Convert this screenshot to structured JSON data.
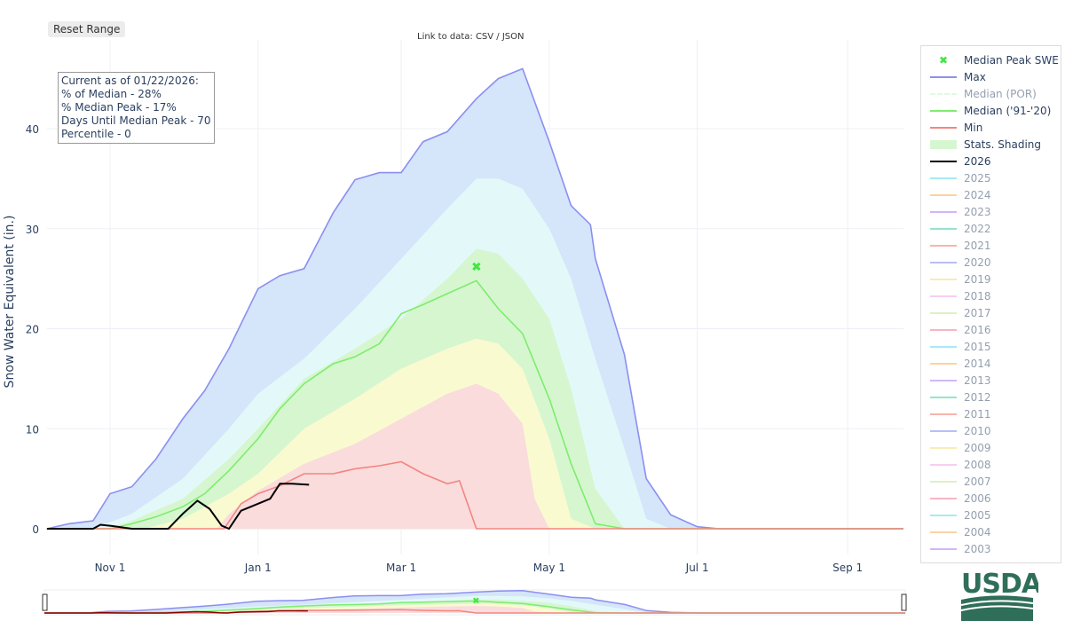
{
  "controls": {
    "reset_label": "Reset Range",
    "data_link": "Link to data: CSV / JSON"
  },
  "info_box": [
    "Current as of 01/22/2026:",
    "% of Median - 28%",
    "% Median Peak - 17%",
    "Days Until Median Peak - 70",
    "Percentile - 0"
  ],
  "logo": {
    "text": "USDA"
  },
  "chart_data": {
    "type": "line",
    "ylabel": "Snow Water Equivalent (in.)",
    "xlabel": "",
    "xrange": [
      "2025-10-06",
      "2026-09-24"
    ],
    "ylim": [
      -2.5,
      48
    ],
    "y_ticks": [
      0,
      10,
      20,
      30,
      40
    ],
    "x_ticks": [
      {
        "date": "2025-11-01",
        "label": "Nov 1"
      },
      {
        "date": "2026-01-01",
        "label": "Jan 1"
      },
      {
        "date": "2026-03-01",
        "label": "Mar 1"
      },
      {
        "date": "2026-05-01",
        "label": "May 1"
      },
      {
        "date": "2026-07-01",
        "label": "Jul 1"
      },
      {
        "date": "2026-09-01",
        "label": "Sep 1"
      }
    ],
    "grid": true,
    "legend_placement": "right",
    "shading": [
      {
        "band": "max",
        "fill": "#d5e5fa",
        "points": [
          [
            "2025-10-06",
            0
          ],
          [
            "2025-10-15",
            0.5
          ],
          [
            "2025-10-25",
            0.8
          ],
          [
            "2025-11-01",
            3.5
          ],
          [
            "2025-11-10",
            4.2
          ],
          [
            "2025-11-20",
            7
          ],
          [
            "2025-12-01",
            11
          ],
          [
            "2025-12-10",
            13.8
          ],
          [
            "2025-12-20",
            18
          ],
          [
            "2026-01-01",
            24
          ],
          [
            "2026-01-10",
            25.3
          ],
          [
            "2026-01-20",
            26
          ],
          [
            "2026-02-01",
            31.6
          ],
          [
            "2026-02-10",
            34.9
          ],
          [
            "2026-02-20",
            35.6
          ],
          [
            "2026-03-01",
            35.6
          ],
          [
            "2026-03-10",
            38.7
          ],
          [
            "2026-03-20",
            39.7
          ],
          [
            "2026-04-01",
            43
          ],
          [
            "2026-04-10",
            45
          ],
          [
            "2026-04-20",
            46
          ],
          [
            "2026-05-01",
            38.7
          ],
          [
            "2026-05-10",
            32.3
          ],
          [
            "2026-05-18",
            30.4
          ],
          [
            "2026-05-20",
            27
          ],
          [
            "2026-06-01",
            17.4
          ],
          [
            "2026-06-10",
            5
          ],
          [
            "2026-06-20",
            1.4
          ],
          [
            "2026-07-01",
            0.2
          ],
          [
            "2026-07-10",
            0
          ],
          [
            "2026-09-24",
            0
          ]
        ]
      },
      {
        "band": "p90",
        "fill": "#e3f9f9",
        "points": [
          [
            "2025-10-25",
            0
          ],
          [
            "2025-11-10",
            1.5
          ],
          [
            "2025-12-01",
            5
          ],
          [
            "2025-12-20",
            10
          ],
          [
            "2026-01-01",
            13.5
          ],
          [
            "2026-01-20",
            17
          ],
          [
            "2026-02-10",
            22
          ],
          [
            "2026-03-01",
            27
          ],
          [
            "2026-03-20",
            32
          ],
          [
            "2026-04-01",
            35
          ],
          [
            "2026-04-10",
            35
          ],
          [
            "2026-04-20",
            34
          ],
          [
            "2026-05-01",
            30
          ],
          [
            "2026-05-10",
            25
          ],
          [
            "2026-05-20",
            17
          ],
          [
            "2026-06-01",
            8
          ],
          [
            "2026-06-10",
            1
          ],
          [
            "2026-06-20",
            0
          ]
        ]
      },
      {
        "band": "p70",
        "fill": "#d6f6d0",
        "points": [
          [
            "2025-10-30",
            0
          ],
          [
            "2025-11-10",
            0.8
          ],
          [
            "2025-12-01",
            3
          ],
          [
            "2025-12-20",
            7
          ],
          [
            "2026-01-01",
            10
          ],
          [
            "2026-01-20",
            15
          ],
          [
            "2026-02-10",
            18
          ],
          [
            "2026-03-01",
            21
          ],
          [
            "2026-03-20",
            25
          ],
          [
            "2026-04-01",
            28
          ],
          [
            "2026-04-10",
            27.5
          ],
          [
            "2026-04-20",
            25
          ],
          [
            "2026-05-01",
            21
          ],
          [
            "2026-05-10",
            14
          ],
          [
            "2026-05-20",
            4
          ],
          [
            "2026-06-01",
            0
          ]
        ]
      },
      {
        "band": "p30",
        "fill": "#fafad0",
        "points": [
          [
            "2025-11-15",
            0
          ],
          [
            "2025-11-20",
            0.3
          ],
          [
            "2025-12-01",
            1
          ],
          [
            "2025-12-20",
            3.5
          ],
          [
            "2026-01-01",
            5.5
          ],
          [
            "2026-01-20",
            10
          ],
          [
            "2026-02-10",
            13
          ],
          [
            "2026-03-01",
            16
          ],
          [
            "2026-03-20",
            18
          ],
          [
            "2026-04-01",
            19
          ],
          [
            "2026-04-10",
            18.5
          ],
          [
            "2026-04-20",
            16
          ],
          [
            "2026-05-01",
            9
          ],
          [
            "2026-05-10",
            1
          ],
          [
            "2026-05-20",
            0
          ]
        ]
      },
      {
        "band": "p10",
        "fill": "#fadcdd",
        "points": [
          [
            "2025-12-15",
            0
          ],
          [
            "2025-12-20",
            1.5
          ],
          [
            "2026-01-01",
            3.8
          ],
          [
            "2026-01-20",
            6.5
          ],
          [
            "2026-02-10",
            8.5
          ],
          [
            "2026-03-01",
            11
          ],
          [
            "2026-03-20",
            13.5
          ],
          [
            "2026-04-01",
            14.5
          ],
          [
            "2026-04-10",
            13.5
          ],
          [
            "2026-04-20",
            10.5
          ],
          [
            "2026-04-25",
            3
          ],
          [
            "2026-05-01",
            0
          ]
        ]
      }
    ],
    "series": [
      {
        "name": "Max",
        "color": "#8b8ff0",
        "points": "@shading.0"
      },
      {
        "name": "Median ('91-'20)",
        "color": "#7ded6d",
        "points": [
          [
            "2025-10-06",
            0
          ],
          [
            "2025-11-01",
            0
          ],
          [
            "2025-11-10",
            0.5
          ],
          [
            "2025-11-20",
            1.2
          ],
          [
            "2025-12-01",
            2.2
          ],
          [
            "2025-12-10",
            3.5
          ],
          [
            "2025-12-20",
            5.8
          ],
          [
            "2026-01-01",
            9
          ],
          [
            "2026-01-10",
            12
          ],
          [
            "2026-01-20",
            14.5
          ],
          [
            "2026-02-01",
            16.5
          ],
          [
            "2026-02-10",
            17.2
          ],
          [
            "2026-02-20",
            18.5
          ],
          [
            "2026-03-01",
            21.5
          ],
          [
            "2026-03-10",
            22.4
          ],
          [
            "2026-03-20",
            23.5
          ],
          [
            "2026-04-01",
            24.8
          ],
          [
            "2026-04-10",
            22
          ],
          [
            "2026-04-20",
            19.5
          ],
          [
            "2026-05-01",
            13
          ],
          [
            "2026-05-10",
            6.5
          ],
          [
            "2026-05-20",
            0.5
          ],
          [
            "2026-06-01",
            0
          ],
          [
            "2026-09-24",
            0
          ]
        ]
      },
      {
        "name": "Min",
        "color": "#f2857f",
        "points": [
          [
            "2025-10-06",
            0
          ],
          [
            "2025-12-18",
            0
          ],
          [
            "2025-12-25",
            2.5
          ],
          [
            "2026-01-01",
            3.5
          ],
          [
            "2026-01-10",
            4.3
          ],
          [
            "2026-01-20",
            5.5
          ],
          [
            "2026-02-01",
            5.5
          ],
          [
            "2026-02-10",
            6
          ],
          [
            "2026-02-20",
            6.3
          ],
          [
            "2026-03-01",
            6.7
          ],
          [
            "2026-03-10",
            5.5
          ],
          [
            "2026-03-20",
            4.5
          ],
          [
            "2026-03-25",
            4.8
          ],
          [
            "2026-04-01",
            0
          ],
          [
            "2026-09-24",
            0
          ]
        ]
      },
      {
        "name": "2026",
        "color": "#000000",
        "points": [
          [
            "2025-10-06",
            0
          ],
          [
            "2025-10-25",
            0
          ],
          [
            "2025-10-28",
            0.4
          ],
          [
            "2025-11-01",
            0.3
          ],
          [
            "2025-11-10",
            0
          ],
          [
            "2025-11-25",
            0
          ],
          [
            "2025-12-01",
            1.5
          ],
          [
            "2025-12-07",
            2.8
          ],
          [
            "2025-12-12",
            2
          ],
          [
            "2025-12-17",
            0.3
          ],
          [
            "2025-12-20",
            0
          ],
          [
            "2025-12-25",
            1.8
          ],
          [
            "2026-01-01",
            2.5
          ],
          [
            "2026-01-06",
            3
          ],
          [
            "2026-01-10",
            4.5
          ],
          [
            "2026-01-15",
            4.5
          ],
          [
            "2026-01-22",
            4.4
          ]
        ]
      }
    ],
    "median_peak": {
      "name": "Median Peak SWE",
      "date": "2026-04-01",
      "value": 26.2,
      "color": "#3ee93e"
    }
  },
  "legend": [
    {
      "label": "Median Peak SWE",
      "color": "#3ee93e",
      "style": "marker",
      "visible": true
    },
    {
      "label": "Max",
      "color": "#8b8ff0",
      "style": "line",
      "visible": true
    },
    {
      "label": "Median (POR)",
      "color": "#c9f2c4",
      "style": "dash",
      "visible": false
    },
    {
      "label": "Median ('91-'20)",
      "color": "#7ded6d",
      "style": "line",
      "visible": true
    },
    {
      "label": "Min",
      "color": "#f2857f",
      "style": "line",
      "visible": true
    },
    {
      "label": "Stats. Shading",
      "color": "#d6f6d0",
      "style": "block",
      "visible": true
    },
    {
      "label": "2026",
      "color": "#000000",
      "style": "line",
      "visible": true
    },
    {
      "label": "2025",
      "color": "#4fd6ee",
      "style": "line",
      "visible": false
    },
    {
      "label": "2024",
      "color": "#f7a64d",
      "style": "line",
      "visible": false
    },
    {
      "label": "2023",
      "color": "#a76cf0",
      "style": "line",
      "visible": false
    },
    {
      "label": "2022",
      "color": "#27c99a",
      "style": "line",
      "visible": false
    },
    {
      "label": "2021",
      "color": "#ef6a5a",
      "style": "line",
      "visible": false
    },
    {
      "label": "2020",
      "color": "#6f7df0",
      "style": "line",
      "visible": false
    },
    {
      "label": "2019",
      "color": "#f7d66a",
      "style": "line",
      "visible": false
    },
    {
      "label": "2018",
      "color": "#f29be6",
      "style": "line",
      "visible": false
    },
    {
      "label": "2017",
      "color": "#b9e68a",
      "style": "line",
      "visible": false
    },
    {
      "label": "2016",
      "color": "#f46a8c",
      "style": "line",
      "visible": false
    },
    {
      "label": "2015",
      "color": "#4fd6ee",
      "style": "line",
      "visible": false
    },
    {
      "label": "2014",
      "color": "#f7a64d",
      "style": "line",
      "visible": false
    },
    {
      "label": "2013",
      "color": "#a76cf0",
      "style": "line",
      "visible": false
    },
    {
      "label": "2012",
      "color": "#27c99a",
      "style": "line",
      "visible": false
    },
    {
      "label": "2011",
      "color": "#ef6a5a",
      "style": "line",
      "visible": false
    },
    {
      "label": "2010",
      "color": "#6f7df0",
      "style": "line",
      "visible": false
    },
    {
      "label": "2009",
      "color": "#f7d66a",
      "style": "line",
      "visible": false
    },
    {
      "label": "2008",
      "color": "#f29be6",
      "style": "line",
      "visible": false
    },
    {
      "label": "2007",
      "color": "#b9e68a",
      "style": "line",
      "visible": false
    },
    {
      "label": "2006",
      "color": "#f46a8c",
      "style": "line",
      "visible": false
    },
    {
      "label": "2005",
      "color": "#4fd6ee",
      "style": "line",
      "visible": false
    },
    {
      "label": "2004",
      "color": "#f7a64d",
      "style": "line",
      "visible": false
    },
    {
      "label": "2003",
      "color": "#a76cf0",
      "style": "line",
      "visible": false
    }
  ]
}
